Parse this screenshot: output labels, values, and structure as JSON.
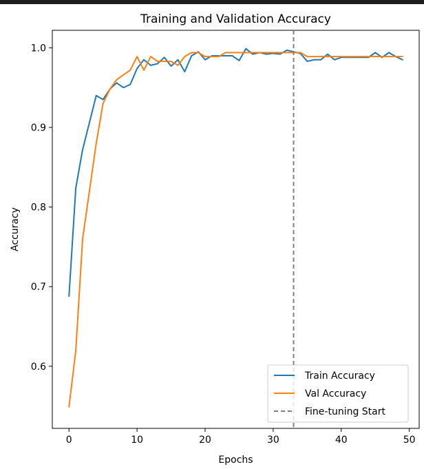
{
  "chart_data": {
    "type": "line",
    "title": "Training and Validation Accuracy",
    "xlabel": "Epochs",
    "ylabel": "Accuracy",
    "xlim": [
      -2.45,
      51.45
    ],
    "ylim": [
      0.522,
      1.022
    ],
    "xticks": [
      0,
      10,
      20,
      30,
      40,
      50
    ],
    "yticks": [
      0.6,
      0.7,
      0.8,
      0.9,
      1.0
    ],
    "xtick_labels": [
      "0",
      "10",
      "20",
      "30",
      "40",
      "50"
    ],
    "ytick_labels": [
      "0.6",
      "0.7",
      "0.8",
      "0.9",
      "1.0"
    ],
    "grid": false,
    "legend_position": "lower-right",
    "x": [
      0,
      1,
      2,
      3,
      4,
      5,
      6,
      7,
      8,
      9,
      10,
      11,
      12,
      13,
      14,
      15,
      16,
      17,
      18,
      19,
      20,
      21,
      22,
      23,
      24,
      25,
      26,
      27,
      28,
      29,
      30,
      31,
      32,
      33,
      34,
      35,
      36,
      37,
      38,
      39,
      40,
      41,
      42,
      43,
      44,
      45,
      46,
      47,
      48,
      49
    ],
    "series": [
      {
        "name": "Train Accuracy",
        "color": "#1f77b4",
        "values": [
          0.688,
          0.824,
          0.872,
          0.906,
          0.94,
          0.935,
          0.948,
          0.956,
          0.95,
          0.954,
          0.974,
          0.985,
          0.978,
          0.98,
          0.988,
          0.977,
          0.985,
          0.97,
          0.99,
          0.995,
          0.985,
          0.99,
          0.99,
          0.99,
          0.99,
          0.984,
          0.999,
          0.992,
          0.994,
          0.992,
          0.993,
          0.992,
          0.997,
          0.995,
          0.993,
          0.983,
          0.985,
          0.985,
          0.992,
          0.985,
          0.988,
          0.988,
          0.988,
          0.988,
          0.988,
          0.994,
          0.988,
          0.994,
          0.989,
          0.985
        ]
      },
      {
        "name": "Val Accuracy",
        "color": "#ff7f0e",
        "values": [
          0.549,
          0.62,
          0.76,
          0.82,
          0.88,
          0.93,
          0.948,
          0.96,
          0.966,
          0.972,
          0.989,
          0.972,
          0.989,
          0.983,
          0.983,
          0.983,
          0.978,
          0.989,
          0.994,
          0.994,
          0.989,
          0.989,
          0.989,
          0.994,
          0.994,
          0.994,
          0.994,
          0.994,
          0.994,
          0.994,
          0.994,
          0.994,
          0.994,
          0.994,
          0.994,
          0.989,
          0.989,
          0.989,
          0.989,
          0.989,
          0.989,
          0.989,
          0.989,
          0.989,
          0.989,
          0.989,
          0.989,
          0.989,
          0.989,
          0.989
        ]
      }
    ],
    "vline": {
      "name": "Fine-tuning Start",
      "x": 33,
      "color": "#808080",
      "style": "dashed"
    }
  }
}
